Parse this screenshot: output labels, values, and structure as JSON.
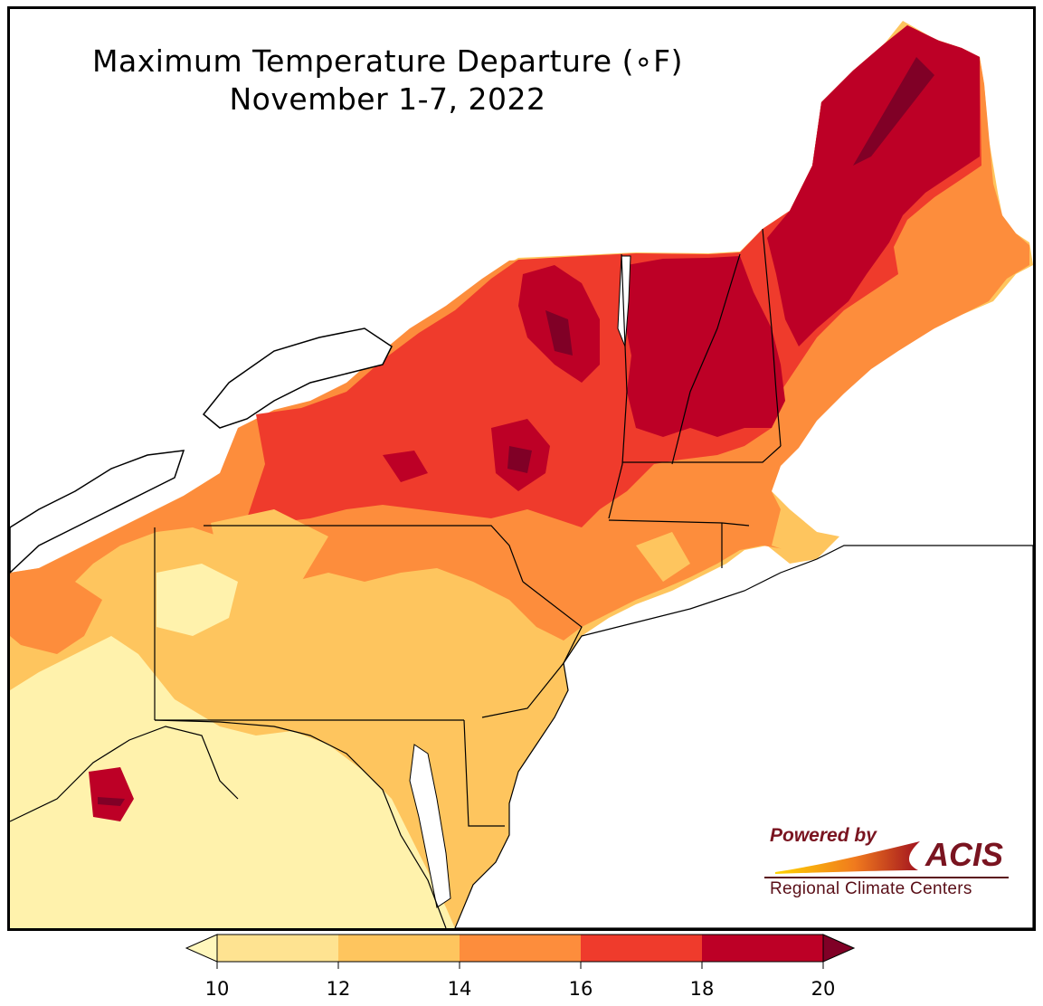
{
  "title": {
    "line1": "Maximum Temperature Departure (∘F)",
    "line2": "November 1-7, 2022"
  },
  "logo": {
    "powered_by": "Powered by",
    "name": "ACIS",
    "subtitle": "Regional Climate Centers"
  },
  "colorbar": {
    "ticks": [
      "10",
      "12",
      "14",
      "16",
      "18",
      "20"
    ],
    "bins": [
      {
        "range": [
          10,
          12
        ],
        "color": "#fee391"
      },
      {
        "range": [
          12,
          14
        ],
        "color": "#fec55e"
      },
      {
        "range": [
          14,
          16
        ],
        "color": "#fd8d3c"
      },
      {
        "range": [
          16,
          18
        ],
        "color": "#ef3b2c"
      },
      {
        "range": [
          18,
          20
        ],
        "color": "#bd0026"
      }
    ],
    "under_color": "#fff7bc",
    "over_color": "#800026"
  },
  "map": {
    "region": "Northeast US",
    "variable": "maximum temperature departure",
    "units": "F",
    "colors": {
      "water": "#ffffff",
      "border": "#000000",
      "county": "#9a9a9a"
    }
  }
}
